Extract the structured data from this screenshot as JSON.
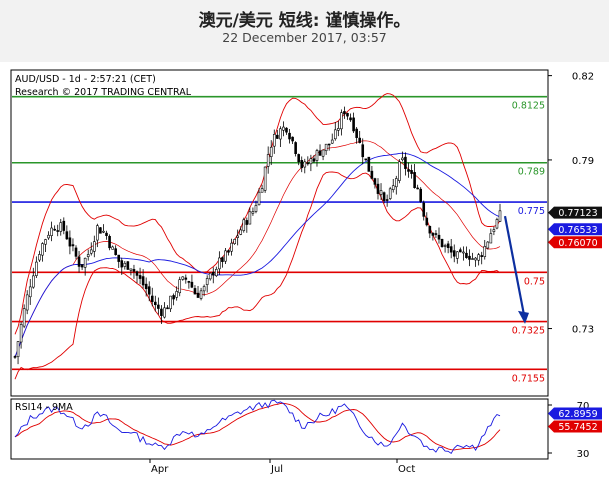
{
  "header": {
    "title": "澳元/美元 短线: 谨慎操作。",
    "date": "22 December 2017, 03:57"
  },
  "chart_data": [
    {
      "type": "candlestick",
      "title": "AUD/USD - 1d - 2:57:21 (CET)",
      "subtitle": "Research © 2017 TRADING CENTRAL",
      "x_tick_labels": [
        "Apr",
        "Jul",
        "Oct"
      ],
      "y_tick_labels": [
        "0.82",
        "0.79",
        "0.73"
      ],
      "ylim": [
        0.706,
        0.822
      ],
      "grid": false,
      "resistance_levels": [
        {
          "label": "0.8125",
          "value": 0.8125,
          "color": "#2a962a"
        },
        {
          "label": "0.789",
          "value": 0.789,
          "color": "#2a962a"
        },
        {
          "label": "0.775",
          "value": 0.775,
          "color": "#1a1ae0"
        }
      ],
      "support_levels": [
        {
          "label": "0.75",
          "value": 0.75,
          "color": "#e00000"
        },
        {
          "label": "0.7325",
          "value": 0.7325,
          "color": "#e00000"
        },
        {
          "label": "0.7155",
          "value": 0.7155,
          "color": "#e00000"
        }
      ],
      "price_badges": [
        {
          "label": "0.77123",
          "value": 0.77123,
          "color": "#111111"
        },
        {
          "label": "0.76533",
          "value": 0.76533,
          "color": "#1a1ae0"
        },
        {
          "label": "0.76070",
          "value": 0.7607,
          "color": "#e00000"
        }
      ],
      "forecast_arrow": {
        "from": 0.77,
        "to": 0.732,
        "color": "#0d2fa0"
      },
      "price_path": [
        0.72,
        0.735,
        0.748,
        0.758,
        0.764,
        0.767,
        0.765,
        0.758,
        0.752,
        0.757,
        0.766,
        0.764,
        0.757,
        0.752,
        0.753,
        0.748,
        0.744,
        0.738,
        0.736,
        0.74,
        0.746,
        0.748,
        0.742,
        0.744,
        0.75,
        0.754,
        0.757,
        0.763,
        0.768,
        0.772,
        0.781,
        0.795,
        0.8,
        0.802,
        0.795,
        0.787,
        0.79,
        0.793,
        0.795,
        0.799,
        0.808,
        0.804,
        0.795,
        0.787,
        0.781,
        0.774,
        0.78,
        0.79,
        0.785,
        0.78,
        0.768,
        0.763,
        0.76,
        0.757,
        0.755,
        0.757,
        0.754,
        0.758,
        0.765,
        0.77
      ]
    },
    {
      "type": "line",
      "title": "RSI14 - 9MA",
      "x_tick_labels": [
        "Apr",
        "Jul",
        "Oct"
      ],
      "y_tick_labels": [
        "70",
        "30"
      ],
      "ylim": [
        25,
        75
      ],
      "series": [
        {
          "label": "62.8959",
          "value": 62.8959,
          "color": "#1a1ae0",
          "key": "rsi"
        },
        {
          "label": "55.7452",
          "value": 55.7452,
          "color": "#e00000",
          "key": "ma"
        }
      ],
      "rsi_path": [
        42,
        52,
        60,
        63,
        66,
        67,
        64,
        57,
        52,
        55,
        62,
        60,
        52,
        47,
        49,
        43,
        40,
        36,
        35,
        40,
        47,
        49,
        43,
        45,
        52,
        56,
        59,
        63,
        66,
        68,
        70,
        71,
        72,
        68,
        60,
        52,
        56,
        60,
        62,
        66,
        70,
        62,
        53,
        45,
        40,
        35,
        42,
        55,
        48,
        43,
        35,
        33,
        34,
        32,
        38,
        36,
        35,
        45,
        55,
        62.9
      ]
    }
  ]
}
